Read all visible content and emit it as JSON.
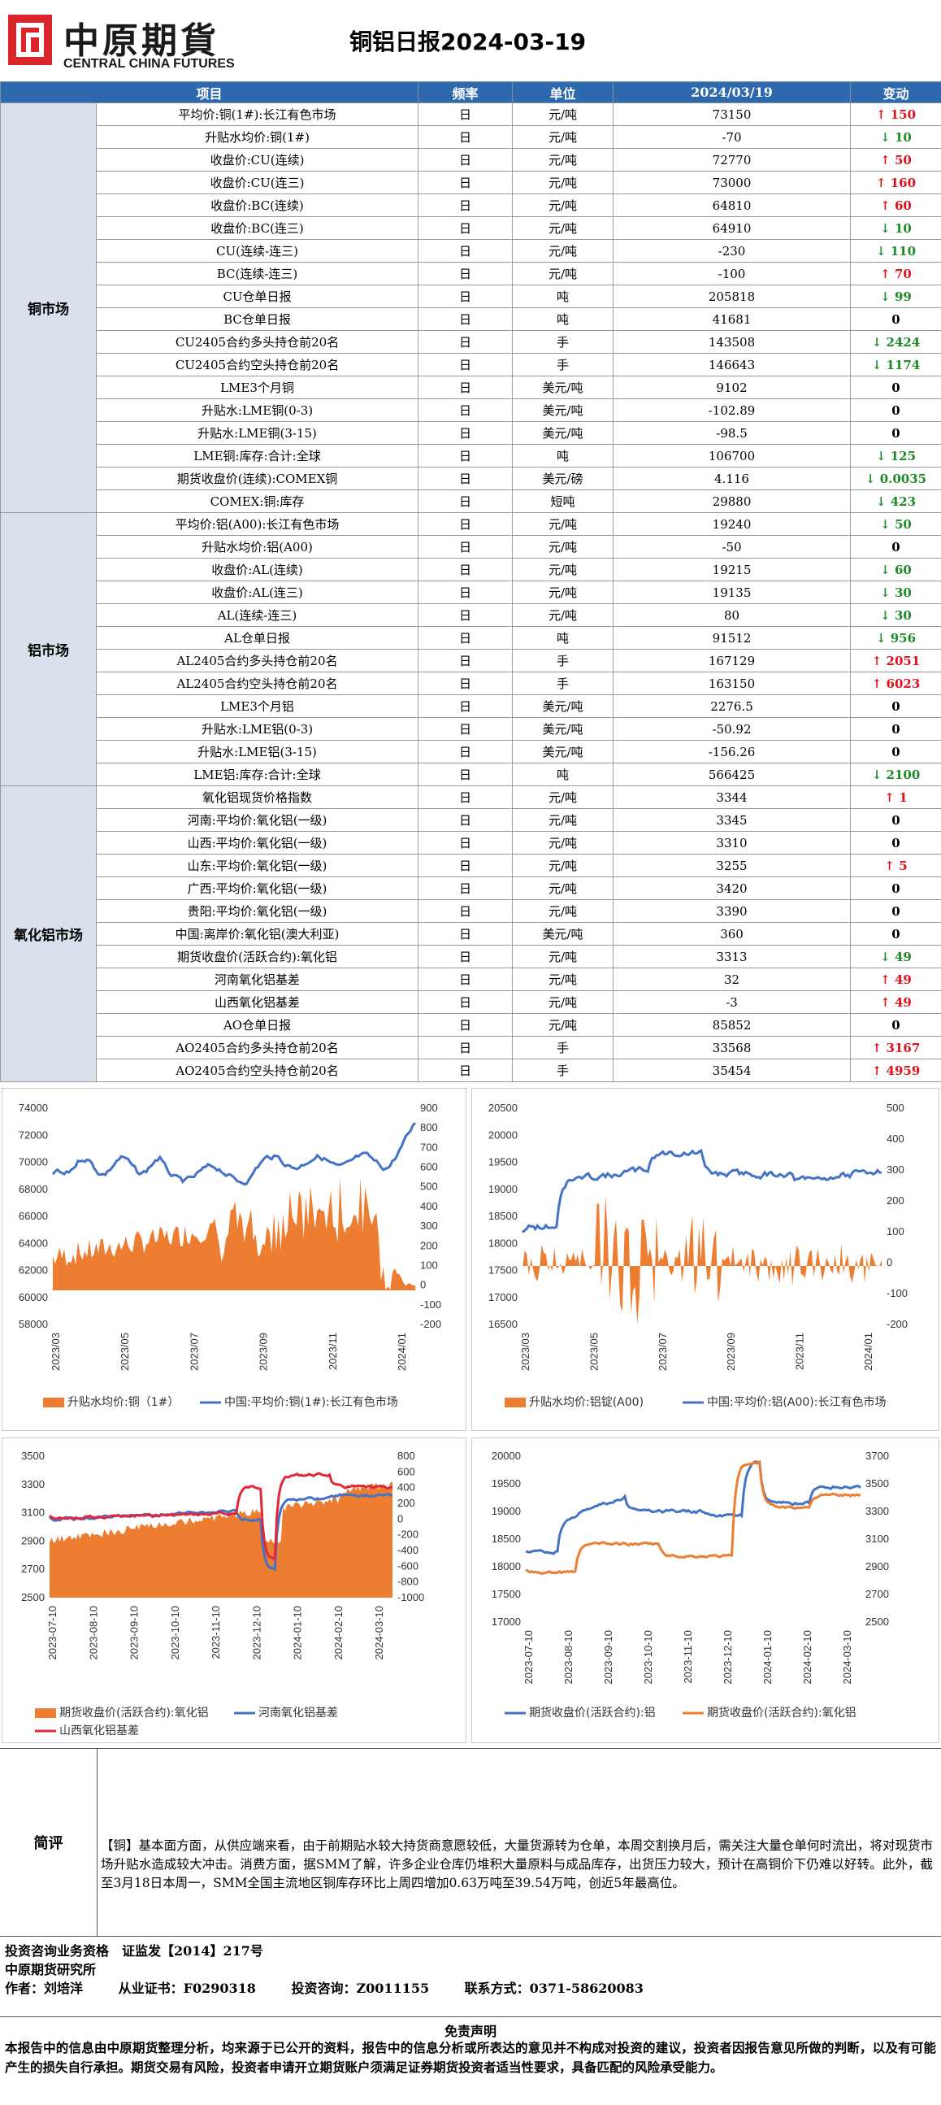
{
  "header": {
    "logo_cn": "中原期貨",
    "logo_en": "CENTRAL CHINA FUTURES",
    "title": "铜铝日报2024-03-19"
  },
  "table": {
    "columns": [
      "项目",
      "频率",
      "单位",
      "2024/03/19",
      "变动"
    ],
    "sections": [
      {
        "name": "铜市场",
        "rows": [
          {
            "item": "平均价:铜(1#):长江有色市场",
            "freq": "日",
            "unit": "元/吨",
            "value": "73150",
            "change": "150",
            "dir": "up"
          },
          {
            "item": "升贴水均价:铜(1#)",
            "freq": "日",
            "unit": "元/吨",
            "value": "-70",
            "change": "10",
            "dir": "down"
          },
          {
            "item": "收盘价:CU(连续)",
            "freq": "日",
            "unit": "元/吨",
            "value": "72770",
            "change": "50",
            "dir": "up"
          },
          {
            "item": "收盘价:CU(连三)",
            "freq": "日",
            "unit": "元/吨",
            "value": "73000",
            "change": "160",
            "dir": "up"
          },
          {
            "item": "收盘价:BC(连续)",
            "freq": "日",
            "unit": "元/吨",
            "value": "64810",
            "change": "60",
            "dir": "up"
          },
          {
            "item": "收盘价:BC(连三)",
            "freq": "日",
            "unit": "元/吨",
            "value": "64910",
            "change": "10",
            "dir": "down"
          },
          {
            "item": "CU(连续-连三)",
            "freq": "日",
            "unit": "元/吨",
            "value": "-230",
            "change": "110",
            "dir": "down"
          },
          {
            "item": "BC(连续-连三)",
            "freq": "日",
            "unit": "元/吨",
            "value": "-100",
            "change": "70",
            "dir": "up"
          },
          {
            "item": "CU仓单日报",
            "freq": "日",
            "unit": "吨",
            "value": "205818",
            "change": "99",
            "dir": "down"
          },
          {
            "item": "BC仓单日报",
            "freq": "日",
            "unit": "吨",
            "value": "41681",
            "change": "0",
            "dir": "flat"
          },
          {
            "item": "CU2405合约多头持仓前20名",
            "freq": "日",
            "unit": "手",
            "value": "143508",
            "change": "2424",
            "dir": "down"
          },
          {
            "item": "CU2405合约空头持仓前20名",
            "freq": "日",
            "unit": "手",
            "value": "146643",
            "change": "1174",
            "dir": "down"
          },
          {
            "item": "LME3个月铜",
            "freq": "日",
            "unit": "美元/吨",
            "value": "9102",
            "change": "0",
            "dir": "flat"
          },
          {
            "item": "升贴水:LME铜(0-3)",
            "freq": "日",
            "unit": "美元/吨",
            "value": "-102.89",
            "change": "0",
            "dir": "flat"
          },
          {
            "item": "升贴水:LME铜(3-15)",
            "freq": "日",
            "unit": "美元/吨",
            "value": "-98.5",
            "change": "0",
            "dir": "flat"
          },
          {
            "item": "LME铜:库存:合计:全球",
            "freq": "日",
            "unit": "吨",
            "value": "106700",
            "change": "125",
            "dir": "down"
          },
          {
            "item": "期货收盘价(连续):COMEX铜",
            "freq": "日",
            "unit": "美元/磅",
            "value": "4.116",
            "change": "0.0035",
            "dir": "down"
          },
          {
            "item": "COMEX:铜:库存",
            "freq": "日",
            "unit": "短吨",
            "value": "29880",
            "change": "423",
            "dir": "down"
          }
        ]
      },
      {
        "name": "铝市场",
        "rows": [
          {
            "item": "平均价:铝(A00):长江有色市场",
            "freq": "日",
            "unit": "元/吨",
            "value": "19240",
            "change": "50",
            "dir": "down"
          },
          {
            "item": "升贴水均价:铝(A00)",
            "freq": "日",
            "unit": "元/吨",
            "value": "-50",
            "change": "0",
            "dir": "flat"
          },
          {
            "item": "收盘价:AL(连续)",
            "freq": "日",
            "unit": "元/吨",
            "value": "19215",
            "change": "60",
            "dir": "down"
          },
          {
            "item": "收盘价:AL(连三)",
            "freq": "日",
            "unit": "元/吨",
            "value": "19135",
            "change": "30",
            "dir": "down"
          },
          {
            "item": "AL(连续-连三)",
            "freq": "日",
            "unit": "元/吨",
            "value": "80",
            "change": "30",
            "dir": "down"
          },
          {
            "item": "AL仓单日报",
            "freq": "日",
            "unit": "吨",
            "value": "91512",
            "change": "956",
            "dir": "down"
          },
          {
            "item": "AL2405合约多头持仓前20名",
            "freq": "日",
            "unit": "手",
            "value": "167129",
            "change": "2051",
            "dir": "up"
          },
          {
            "item": "AL2405合约空头持仓前20名",
            "freq": "日",
            "unit": "手",
            "value": "163150",
            "change": "6023",
            "dir": "up"
          },
          {
            "item": "LME3个月铝",
            "freq": "日",
            "unit": "美元/吨",
            "value": "2276.5",
            "change": "0",
            "dir": "flat"
          },
          {
            "item": "升贴水:LME铝(0-3)",
            "freq": "日",
            "unit": "美元/吨",
            "value": "-50.92",
            "change": "0",
            "dir": "flat"
          },
          {
            "item": "升贴水:LME铝(3-15)",
            "freq": "日",
            "unit": "美元/吨",
            "value": "-156.26",
            "change": "0",
            "dir": "flat"
          },
          {
            "item": "LME铝:库存:合计:全球",
            "freq": "日",
            "unit": "吨",
            "value": "566425",
            "change": "2100",
            "dir": "down"
          }
        ]
      },
      {
        "name": "氧化铝市场",
        "rows": [
          {
            "item": "氧化铝现货价格指数",
            "freq": "日",
            "unit": "元/吨",
            "value": "3344",
            "change": "1",
            "dir": "up"
          },
          {
            "item": "河南:平均价:氧化铝(一级)",
            "freq": "日",
            "unit": "元/吨",
            "value": "3345",
            "change": "0",
            "dir": "flat"
          },
          {
            "item": "山西:平均价:氧化铝(一级)",
            "freq": "日",
            "unit": "元/吨",
            "value": "3310",
            "change": "0",
            "dir": "flat"
          },
          {
            "item": "山东:平均价:氧化铝(一级)",
            "freq": "日",
            "unit": "元/吨",
            "value": "3255",
            "change": "5",
            "dir": "up"
          },
          {
            "item": "广西:平均价:氧化铝(一级)",
            "freq": "日",
            "unit": "元/吨",
            "value": "3420",
            "change": "0",
            "dir": "flat"
          },
          {
            "item": "贵阳:平均价:氧化铝(一级)",
            "freq": "日",
            "unit": "元/吨",
            "value": "3390",
            "change": "0",
            "dir": "flat"
          },
          {
            "item": "中国:离岸价:氧化铝(澳大利亚)",
            "freq": "日",
            "unit": "美元/吨",
            "value": "360",
            "change": "0",
            "dir": "flat"
          },
          {
            "item": "期货收盘价(活跃合约):氧化铝",
            "freq": "日",
            "unit": "元/吨",
            "value": "3313",
            "change": "49",
            "dir": "down"
          },
          {
            "item": "河南氧化铝基差",
            "freq": "日",
            "unit": "元/吨",
            "value": "32",
            "change": "49",
            "dir": "up"
          },
          {
            "item": "山西氧化铝基差",
            "freq": "日",
            "unit": "元/吨",
            "value": "-3",
            "change": "49",
            "dir": "up"
          },
          {
            "item": "AO仓单日报",
            "freq": "日",
            "unit": "元/吨",
            "value": "85852",
            "change": "0",
            "dir": "flat"
          },
          {
            "item": "AO2405合约多头持仓前20名",
            "freq": "日",
            "unit": "手",
            "value": "33568",
            "change": "3167",
            "dir": "up"
          },
          {
            "item": "AO2405合约空头持仓前20名",
            "freq": "日",
            "unit": "手",
            "value": "35454",
            "change": "4959",
            "dir": "up"
          }
        ]
      }
    ]
  },
  "charts": {
    "colors": {
      "bar": "#ed7d31",
      "line_blue": "#4472c4",
      "line_red": "#e0283c",
      "line_orange": "#ed7d31"
    },
    "copper": {
      "left_ticks": [
        "74000",
        "72000",
        "70000",
        "68000",
        "66000",
        "64000",
        "62000",
        "60000",
        "58000"
      ],
      "right_ticks": [
        "900",
        "800",
        "700",
        "600",
        "500",
        "400",
        "300",
        "200",
        "100",
        "0",
        "-100",
        "-200"
      ],
      "x_ticks": [
        "2023/03",
        "2023/05",
        "2023/07",
        "2023/09",
        "2023/11",
        "2024/01"
      ],
      "legend": [
        "升贴水均价:铜（1#）",
        "中国:平均价:铜(1#):长江有色市场"
      ]
    },
    "aluminium": {
      "left_ticks": [
        "20500",
        "20000",
        "19500",
        "19000",
        "18500",
        "18000",
        "17500",
        "17000",
        "16500"
      ],
      "right_ticks": [
        "500",
        "400",
        "300",
        "200",
        "100",
        "0",
        "-100",
        "-200"
      ],
      "x_ticks": [
        "2023/03",
        "2023/05",
        "2023/07",
        "2023/09",
        "2023/11",
        "2024/01"
      ],
      "legend": [
        "升贴水均价:铝锭(A00)",
        "中国:平均价:铝(A00):长江有色市场"
      ]
    },
    "alumina_basis": {
      "left_ticks": [
        "3500",
        "3300",
        "3100",
        "2900",
        "2700",
        "2500"
      ],
      "right_ticks": [
        "800",
        "600",
        "400",
        "200",
        "0",
        "-200",
        "-400",
        "-600",
        "-800",
        "-1000"
      ],
      "x_ticks": [
        "2023-07-10",
        "2023-08-10",
        "2023-09-10",
        "2023-10-10",
        "2023-11-10",
        "2023-12-10",
        "2024-01-10",
        "2024-02-10",
        "2024-03-10"
      ],
      "legend": [
        "期货收盘价(活跃合约):氧化铝",
        "河南氧化铝基差",
        "山西氧化铝基差"
      ]
    },
    "al_vs_alumina": {
      "left_ticks": [
        "20000",
        "19500",
        "19000",
        "18500",
        "18000",
        "17500",
        "17000"
      ],
      "right_ticks": [
        "3700",
        "3500",
        "3300",
        "3100",
        "2900",
        "2700",
        "2500"
      ],
      "x_ticks": [
        "2023-07-10",
        "2023-08-10",
        "2023-09-10",
        "2023-10-10",
        "2023-11-10",
        "2023-12-10",
        "2024-01-10",
        "2024-02-10",
        "2024-03-10"
      ],
      "legend": [
        "期货收盘价(活跃合约):铝",
        "期货收盘价(活跃合约):氧化铝"
      ]
    }
  },
  "comment": {
    "label": "简评",
    "text": "【铜】基本面方面，从供应端来看，由于前期贴水较大持货商意愿较低，大量货源转为仓单，本周交割换月后，需关注大量仓单何时流出，将对现货市场升贴水造成较大冲击。消费方面，据SMM了解，许多企业仓库仍堆积大量原料与成品库存，出货压力较大，预计在高铜价下仍难以好转。此外，截至3月18日本周一，SMM全国主流地区铜库存环比上周四增加0.63万吨至39.54万吨，创近5年最高位。"
  },
  "footer": {
    "qualification": "投资咨询业务资格　证监发【2014】217号",
    "institute": "中原期货研究所",
    "author": "作者：刘培洋",
    "license": "从业证书：F0290318",
    "advisor": "投资咨询：Z0011155",
    "contact": "联系方式：0371-58620083",
    "disclaimer_title": "免责声明",
    "disclaimer_text": "本报告中的信息由中原期货整理分析，均来源于已公开的资料，报告中的信息分析或所表达的意见并不构成对投资的建议，投资者因报告意见所做的判断，以及有可能产生的损失自行承担。期货交易有风险，投资者申请开立期货账户须满足证券期货投资者适当性要求，具备匹配的风险承受能力。"
  }
}
